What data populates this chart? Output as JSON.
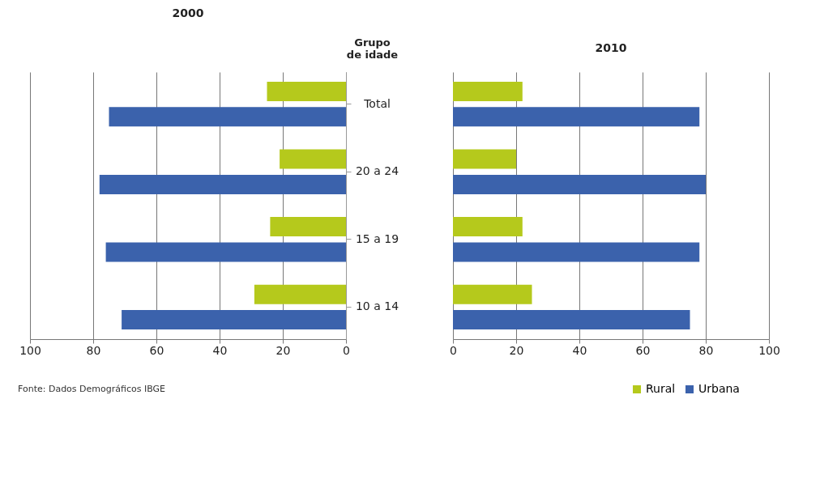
{
  "chart_data": [
    {
      "type": "bar",
      "orientation": "horizontal",
      "title": "2000",
      "ylabel": "Grupo de idade",
      "categories": [
        "Total",
        "20 a 24",
        "15 a 19",
        "10 a 14"
      ],
      "series": [
        {
          "color": "#b5c91c",
          "values": [
            25,
            21,
            24,
            29
          ]
        },
        {
          "color": "#3b62ac",
          "values": [
            75,
            78,
            76,
            71
          ]
        }
      ],
      "xlim": [
        100,
        0
      ],
      "xticks": [
        100,
        80,
        60,
        40,
        20,
        0
      ],
      "grid": "x",
      "legend": false,
      "annotations": [
        "Fonte: Dados Demográficos IBGE"
      ]
    },
    {
      "type": "bar",
      "orientation": "horizontal",
      "title": "2010",
      "series": [
        {
          "name": "Rural",
          "color": "#b5c91c",
          "values": [
            22,
            20,
            22,
            25
          ]
        },
        {
          "name": "Urbana",
          "color": "#3b62ac",
          "values": [
            78,
            80,
            78,
            75
          ]
        }
      ],
      "xlim": [
        0,
        100
      ],
      "xticks": [
        0,
        20,
        40,
        60,
        80,
        100
      ],
      "grid": "x",
      "legend": "bottom right",
      "tick_labels": "x"
    }
  ]
}
